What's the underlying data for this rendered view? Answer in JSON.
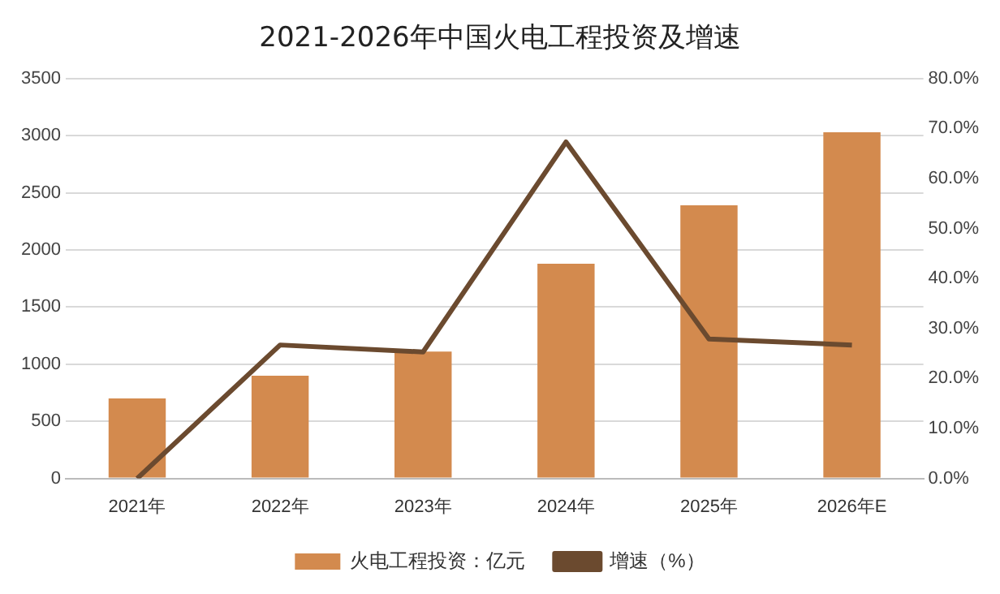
{
  "chart_data": {
    "type": "bar",
    "title": "2021-2026年中国火电工程投资及增速",
    "categories": [
      "2021年",
      "2022年",
      "2023年",
      "2024年",
      "2025年",
      "2026年E"
    ],
    "series": [
      {
        "name": "火电工程投资：亿元",
        "color": "#d38a4e",
        "values": [
          700,
          900,
          1110,
          1880,
          2390,
          3030
        ]
      },
      {
        "name": "增速（%）",
        "type": "line",
        "axis": "y2",
        "color": "#6b4a2f",
        "values": [
          0,
          26.7,
          25.3,
          67.3,
          27.9,
          26.7
        ]
      }
    ],
    "ylim": [
      0,
      3500
    ],
    "yticks": [
      0,
      500,
      1000,
      1500,
      2000,
      2500,
      3000,
      3500
    ],
    "y2lim": [
      0,
      80
    ],
    "y2ticks": [
      {
        "value": 0,
        "label": "0.0%"
      },
      {
        "value": 10,
        "label": "10.0%"
      },
      {
        "value": 20,
        "label": "20.0%"
      },
      {
        "value": 30,
        "label": "30.0%"
      },
      {
        "value": 40,
        "label": "40.0%"
      },
      {
        "value": 50,
        "label": "50.0%"
      },
      {
        "value": 60,
        "label": "60.0%"
      },
      {
        "value": 70,
        "label": "70.0%"
      },
      {
        "value": 80,
        "label": "80.0%"
      }
    ],
    "grid": "y",
    "legend": "bottom",
    "marker": "none"
  }
}
